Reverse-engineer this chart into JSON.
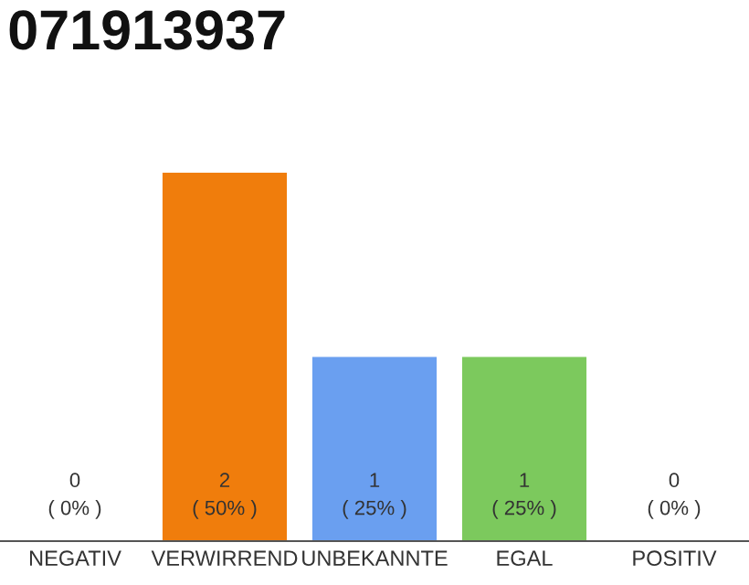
{
  "chart_data": {
    "type": "bar",
    "title": "071913937",
    "categories": [
      "NEGATIV",
      "VERWIRREND",
      "UNBEKANNTE",
      "EGAL",
      "POSITIV"
    ],
    "values": [
      0,
      50,
      25,
      25,
      0
    ],
    "colors": [
      "#e0e0e0",
      "#f07d0c",
      "#6a9ff0",
      "#7cc95d",
      "#e0e0e0"
    ],
    "value_labels": [
      "0\n( 0% )",
      "2\n( 50% )",
      "1\n( 25% )",
      "1\n( 25% )",
      "0\n( 0% )"
    ],
    "tick_labels": "x",
    "grid": false,
    "legend": false
  }
}
